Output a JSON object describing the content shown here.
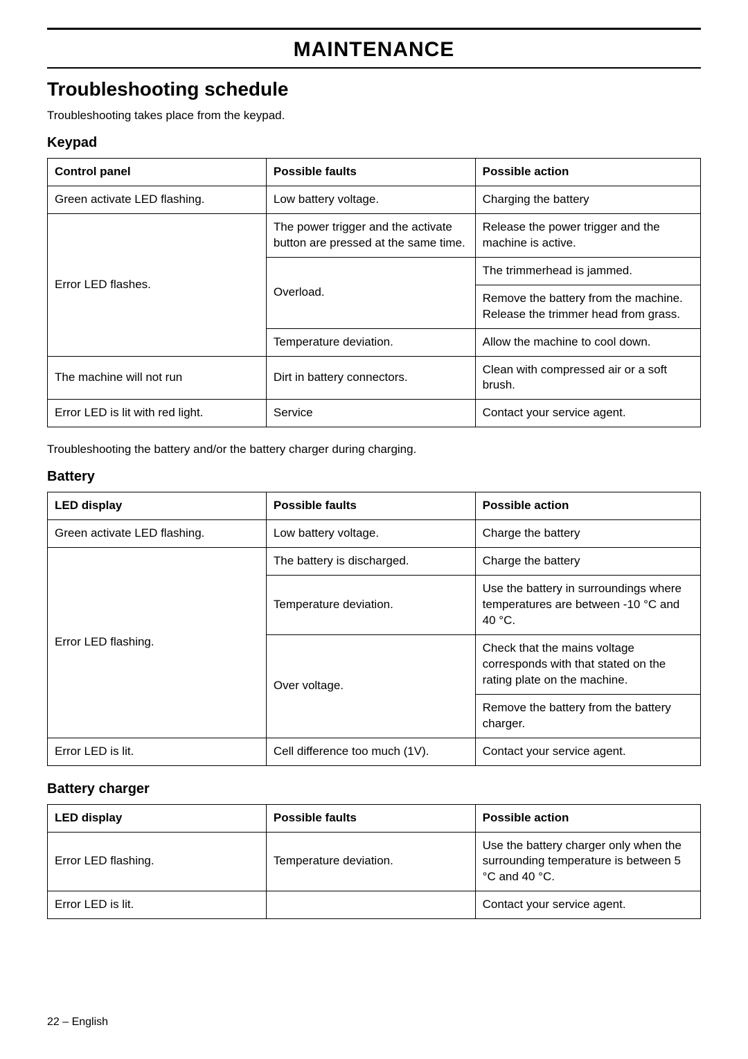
{
  "chapter": "MAINTENANCE",
  "section": "Troubleshooting schedule",
  "intro1": "Troubleshooting takes place from the keypad.",
  "intro2": "Troubleshooting the battery and/or the battery charger during charging.",
  "footer": "22 – English",
  "keypad": {
    "heading": "Keypad",
    "headers": {
      "c1": "Control panel",
      "c2": "Possible faults",
      "c3": "Possible action"
    },
    "r1": {
      "c1": "Green activate LED flashing.",
      "c2": "Low battery voltage.",
      "c3": "Charging the battery"
    },
    "r2_c1": "Error LED flashes.",
    "r2a": {
      "c2": "The power trigger and the activate button are pressed at the same time.",
      "c3": "Release the power trigger and the machine is active."
    },
    "r2b_c2": "Overload.",
    "r2b_c3a": "The trimmerhead is jammed.",
    "r2b_c3b": "Remove the battery from the machine. Release the trimmer head from grass.",
    "r2c": {
      "c2": "Temperature deviation.",
      "c3": "Allow the machine to cool down."
    },
    "r3": {
      "c1": "The machine will not run",
      "c2": "Dirt in battery connectors.",
      "c3": "Clean with compressed air or a soft brush."
    },
    "r4": {
      "c1": "Error LED is lit with red light.",
      "c2": "Service",
      "c3": "Contact your service agent."
    }
  },
  "battery": {
    "heading": "Battery",
    "headers": {
      "c1": "LED display",
      "c2": "Possible faults",
      "c3": "Possible action"
    },
    "r1": {
      "c1": "Green activate LED flashing.",
      "c2": "Low battery voltage.",
      "c3": "Charge the battery"
    },
    "r2_c1": "Error LED flashing.",
    "r2a": {
      "c2": "The battery is discharged.",
      "c3": "Charge the battery"
    },
    "r2b": {
      "c2": "Temperature deviation.",
      "c3": "Use the battery in surroundings where temperatures are between -10 °C and 40 °C."
    },
    "r2c_c2": "Over voltage.",
    "r2c_c3a": "Check that the mains voltage corresponds with that stated on the rating plate on the machine.",
    "r2c_c3b": "Remove the battery from the battery charger.",
    "r3": {
      "c1": "Error LED is lit.",
      "c2": "Cell difference too much (1V).",
      "c3": "Contact your service agent."
    }
  },
  "charger": {
    "heading": "Battery charger",
    "headers": {
      "c1": "LED display",
      "c2": "Possible faults",
      "c3": "Possible action"
    },
    "r1": {
      "c1": "Error LED flashing.",
      "c2": "Temperature deviation.",
      "c3": "Use the battery charger only when the surrounding temperature is between 5 °C and 40 °C."
    },
    "r2": {
      "c1": "Error LED is lit.",
      "c2": "",
      "c3": "Contact your service agent."
    }
  }
}
